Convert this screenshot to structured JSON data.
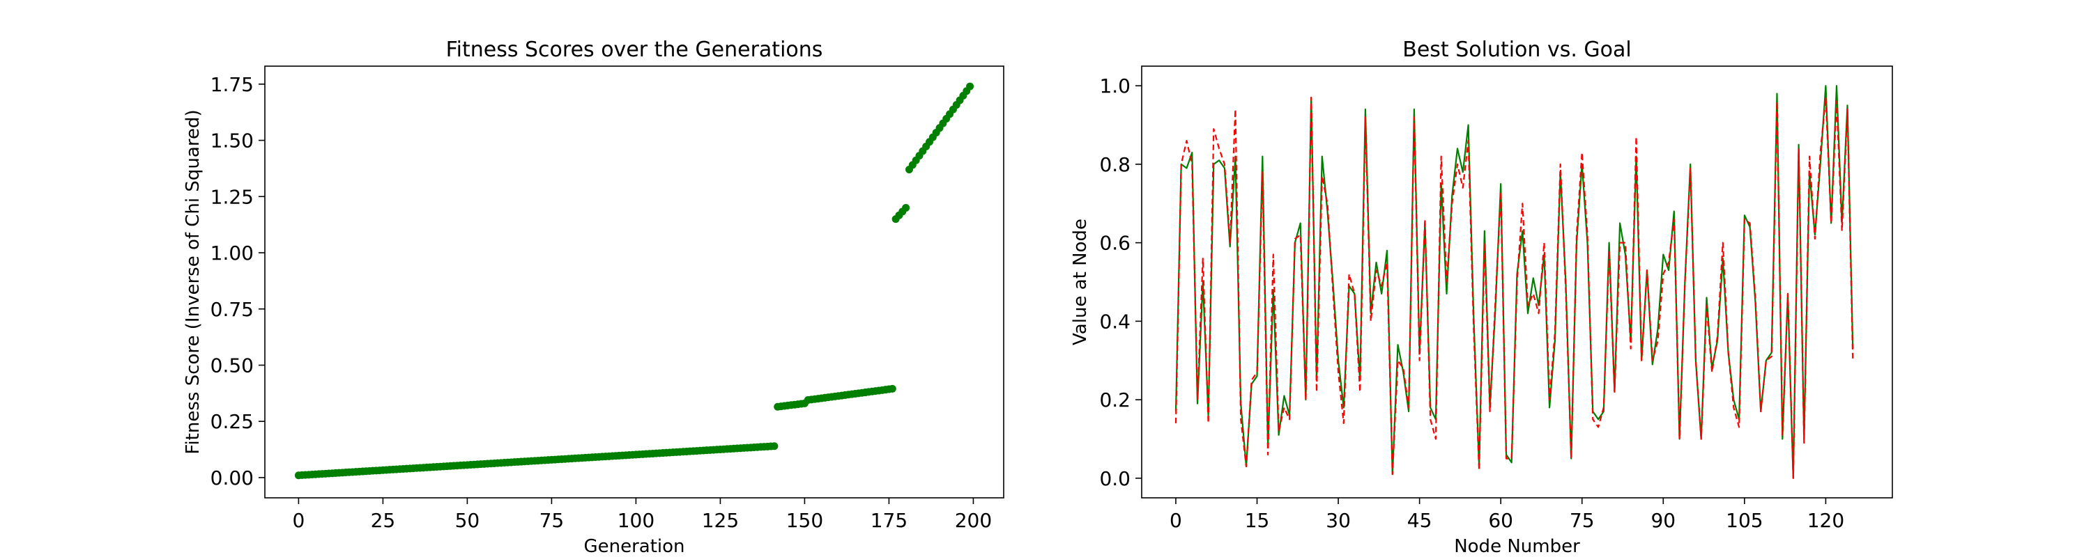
{
  "colors": {
    "green": "#007f00",
    "red": "#ff0000",
    "frame": "#000000"
  },
  "chart_data": [
    {
      "type": "scatter",
      "title": "Fitness Scores over the Generations",
      "xlabel": "Generation",
      "ylabel": "Fitness Score (Inverse of Chi Squared)",
      "xlim": [
        -10,
        209
      ],
      "ylim": [
        -0.09,
        1.83
      ],
      "xticks": [
        0,
        25,
        50,
        75,
        100,
        125,
        150,
        175,
        200
      ],
      "xtick_labels": [
        "0",
        "25",
        "50",
        "75",
        "100",
        "125",
        "150",
        "175",
        "200"
      ],
      "yticks": [
        0,
        0.25,
        0.5,
        0.75,
        1.0,
        1.25,
        1.5,
        1.75
      ],
      "ytick_labels": [
        "0.00",
        "0.25",
        "0.50",
        "0.75",
        "1.00",
        "1.25",
        "1.50",
        "1.75"
      ],
      "series": [
        {
          "color": "#007f00",
          "segments": [
            {
              "x_start": 0,
              "x_end": 141,
              "y_start": 0.01,
              "y_end": 0.14
            },
            {
              "x_start": 142,
              "x_end": 150,
              "y_start": 0.315,
              "y_end": 0.33
            },
            {
              "x_start": 151,
              "x_end": 176,
              "y_start": 0.345,
              "y_end": 0.395
            },
            {
              "x_start": 177,
              "x_end": 180,
              "y_start": 1.15,
              "y_end": 1.2
            },
            {
              "x_start": 181,
              "x_end": 199,
              "y_start": 1.37,
              "y_end": 1.74
            }
          ]
        }
      ],
      "grid": false
    },
    {
      "type": "line",
      "title": "Best Solution vs. Goal",
      "xlabel": "Node Number",
      "ylabel": "Value at Node",
      "xlim": [
        -6.3,
        132.3
      ],
      "ylim": [
        -0.05,
        1.05
      ],
      "xticks": [
        0,
        15,
        30,
        45,
        60,
        75,
        90,
        105,
        120
      ],
      "xtick_labels": [
        "0",
        "15",
        "30",
        "45",
        "60",
        "75",
        "90",
        "105",
        "120"
      ],
      "yticks": [
        0,
        0.2,
        0.4,
        0.6,
        0.8,
        1.0
      ],
      "ytick_labels": [
        "0.0",
        "0.2",
        "0.4",
        "0.6",
        "0.8",
        "1.0"
      ],
      "series": [
        {
          "color": "#007f00",
          "style": "solid",
          "values": [
            0.17,
            0.8,
            0.79,
            0.83,
            0.19,
            0.5,
            0.16,
            0.8,
            0.81,
            0.79,
            0.59,
            0.82,
            0.19,
            0.03,
            0.24,
            0.26,
            0.82,
            0.08,
            0.48,
            0.11,
            0.21,
            0.16,
            0.6,
            0.65,
            0.2,
            0.97,
            0.25,
            0.82,
            0.68,
            0.5,
            0.3,
            0.18,
            0.49,
            0.47,
            0.25,
            0.94,
            0.42,
            0.55,
            0.47,
            0.58,
            0.01,
            0.34,
            0.27,
            0.17,
            0.94,
            0.32,
            0.65,
            0.18,
            0.15,
            0.75,
            0.47,
            0.72,
            0.84,
            0.78,
            0.9,
            0.41,
            0.03,
            0.63,
            0.18,
            0.43,
            0.75,
            0.06,
            0.04,
            0.52,
            0.63,
            0.42,
            0.51,
            0.44,
            0.57,
            0.18,
            0.35,
            0.78,
            0.5,
            0.05,
            0.6,
            0.8,
            0.6,
            0.17,
            0.15,
            0.17,
            0.6,
            0.22,
            0.65,
            0.57,
            0.35,
            0.82,
            0.3,
            0.53,
            0.29,
            0.38,
            0.57,
            0.53,
            0.68,
            0.1,
            0.5,
            0.8,
            0.3,
            0.1,
            0.46,
            0.28,
            0.35,
            0.56,
            0.32,
            0.2,
            0.15,
            0.67,
            0.64,
            0.45,
            0.17,
            0.3,
            0.32,
            0.98,
            0.1,
            0.47,
            0.0,
            0.85,
            0.1,
            0.78,
            0.62,
            0.8,
            1.0,
            0.65,
            1.0,
            0.65,
            0.95,
            0.33
          ]
        },
        {
          "color": "#ff0000",
          "style": "dashed",
          "values": [
            0.14,
            0.8,
            0.86,
            0.8,
            0.2,
            0.56,
            0.14,
            0.89,
            0.84,
            0.8,
            0.6,
            0.94,
            0.15,
            0.03,
            0.25,
            0.27,
            0.78,
            0.06,
            0.57,
            0.12,
            0.18,
            0.15,
            0.61,
            0.62,
            0.2,
            0.97,
            0.22,
            0.77,
            0.7,
            0.48,
            0.27,
            0.14,
            0.52,
            0.47,
            0.22,
            0.92,
            0.4,
            0.53,
            0.49,
            0.55,
            0.01,
            0.3,
            0.28,
            0.18,
            0.92,
            0.3,
            0.66,
            0.15,
            0.1,
            0.82,
            0.5,
            0.7,
            0.8,
            0.74,
            0.86,
            0.38,
            0.02,
            0.6,
            0.17,
            0.45,
            0.73,
            0.05,
            0.05,
            0.5,
            0.7,
            0.44,
            0.47,
            0.42,
            0.6,
            0.2,
            0.37,
            0.8,
            0.48,
            0.05,
            0.62,
            0.83,
            0.62,
            0.15,
            0.13,
            0.18,
            0.58,
            0.22,
            0.6,
            0.6,
            0.33,
            0.87,
            0.3,
            0.53,
            0.3,
            0.35,
            0.52,
            0.55,
            0.66,
            0.1,
            0.5,
            0.79,
            0.3,
            0.1,
            0.44,
            0.27,
            0.36,
            0.6,
            0.32,
            0.18,
            0.13,
            0.66,
            0.65,
            0.46,
            0.17,
            0.3,
            0.31,
            0.96,
            0.11,
            0.47,
            0.0,
            0.84,
            0.09,
            0.82,
            0.61,
            0.83,
            0.97,
            0.65,
            0.96,
            0.63,
            0.94,
            0.3
          ]
        }
      ],
      "grid": false
    }
  ]
}
